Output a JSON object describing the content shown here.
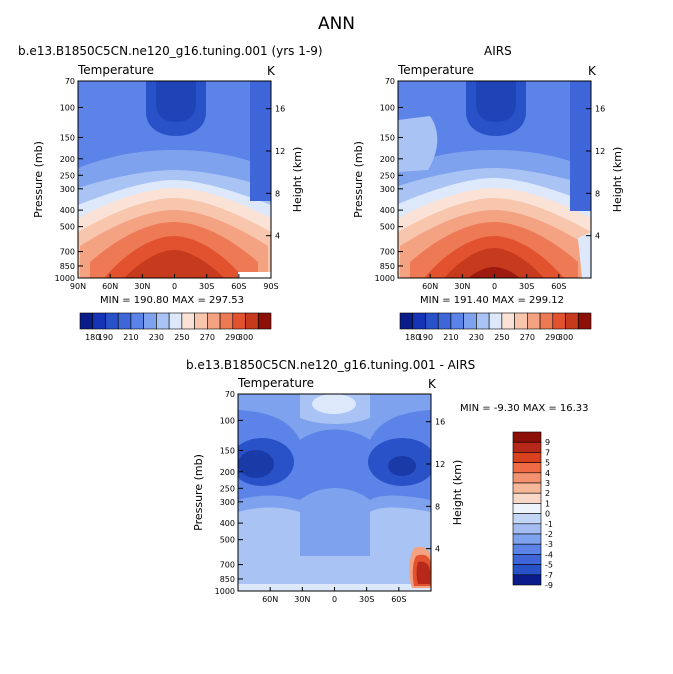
{
  "title": "ANN",
  "colors": {
    "blue_dark": "#1f3fb4",
    "blue_mid": "#3c6be0",
    "blue_light": "#a8c4f0",
    "white_band": "#f4f8ff",
    "pink": "#f9d6c8",
    "red_mid": "#ee6b45",
    "red_dark": "#c0281a"
  },
  "chart_data": [
    {
      "type": "contour",
      "title": "b.e13.B1850C5CN.ne120_g16.tuning.001 (yrs 1-9)",
      "left_label": "Temperature",
      "right_label": "K",
      "ylabel": "Pressure (mb)",
      "y2label": "Height (km)",
      "x_ticks": [
        "90N",
        "60N",
        "30N",
        "0",
        "30S",
        "60S",
        "90S"
      ],
      "y_ticks": [
        "70",
        "100",
        "150",
        "200",
        "250",
        "300",
        "400",
        "500",
        "700",
        "850",
        "1000"
      ],
      "y2_ticks": [
        "16",
        "12",
        "8",
        "4"
      ],
      "min_max": "MIN = 190.80   MAX = 297.53",
      "colorbar_labels": [
        "180",
        "190",
        "210",
        "230",
        "250",
        "270",
        "290",
        "300"
      ]
    },
    {
      "type": "contour",
      "title": "AIRS",
      "left_label": "Temperature",
      "right_label": "K",
      "ylabel": "Pressure (mb)",
      "y2label": "Height (km)",
      "x_ticks": [
        "60N",
        "30N",
        "0",
        "30S",
        "60S"
      ],
      "y_ticks": [
        "70",
        "100",
        "150",
        "200",
        "250",
        "300",
        "400",
        "500",
        "700",
        "850",
        "1000"
      ],
      "y2_ticks": [
        "16",
        "12",
        "8",
        "4"
      ],
      "min_max": "MIN = 191.40   MAX = 299.12",
      "colorbar_labels": [
        "180",
        "190",
        "210",
        "230",
        "250",
        "270",
        "290",
        "300"
      ]
    },
    {
      "type": "contour",
      "title": "b.e13.B1850C5CN.ne120_g16.tuning.001 - AIRS",
      "left_label": "Temperature",
      "right_label": "K",
      "ylabel": "Pressure (mb)",
      "y2label": "Height (km)",
      "x_ticks": [
        "60N",
        "30N",
        "0",
        "30S",
        "60S"
      ],
      "y_ticks": [
        "70",
        "100",
        "150",
        "200",
        "250",
        "300",
        "400",
        "500",
        "700",
        "850",
        "1000"
      ],
      "y2_ticks": [
        "16",
        "12",
        "8",
        "4"
      ],
      "min_max": "MIN =    -9.30   MAX =   16.33",
      "colorbar_labels": [
        "9",
        "7",
        "5",
        "4",
        "3",
        "2",
        "1",
        "0",
        "-1",
        "-2",
        "-3",
        "-4",
        "-5",
        "-7",
        "-9"
      ]
    }
  ]
}
